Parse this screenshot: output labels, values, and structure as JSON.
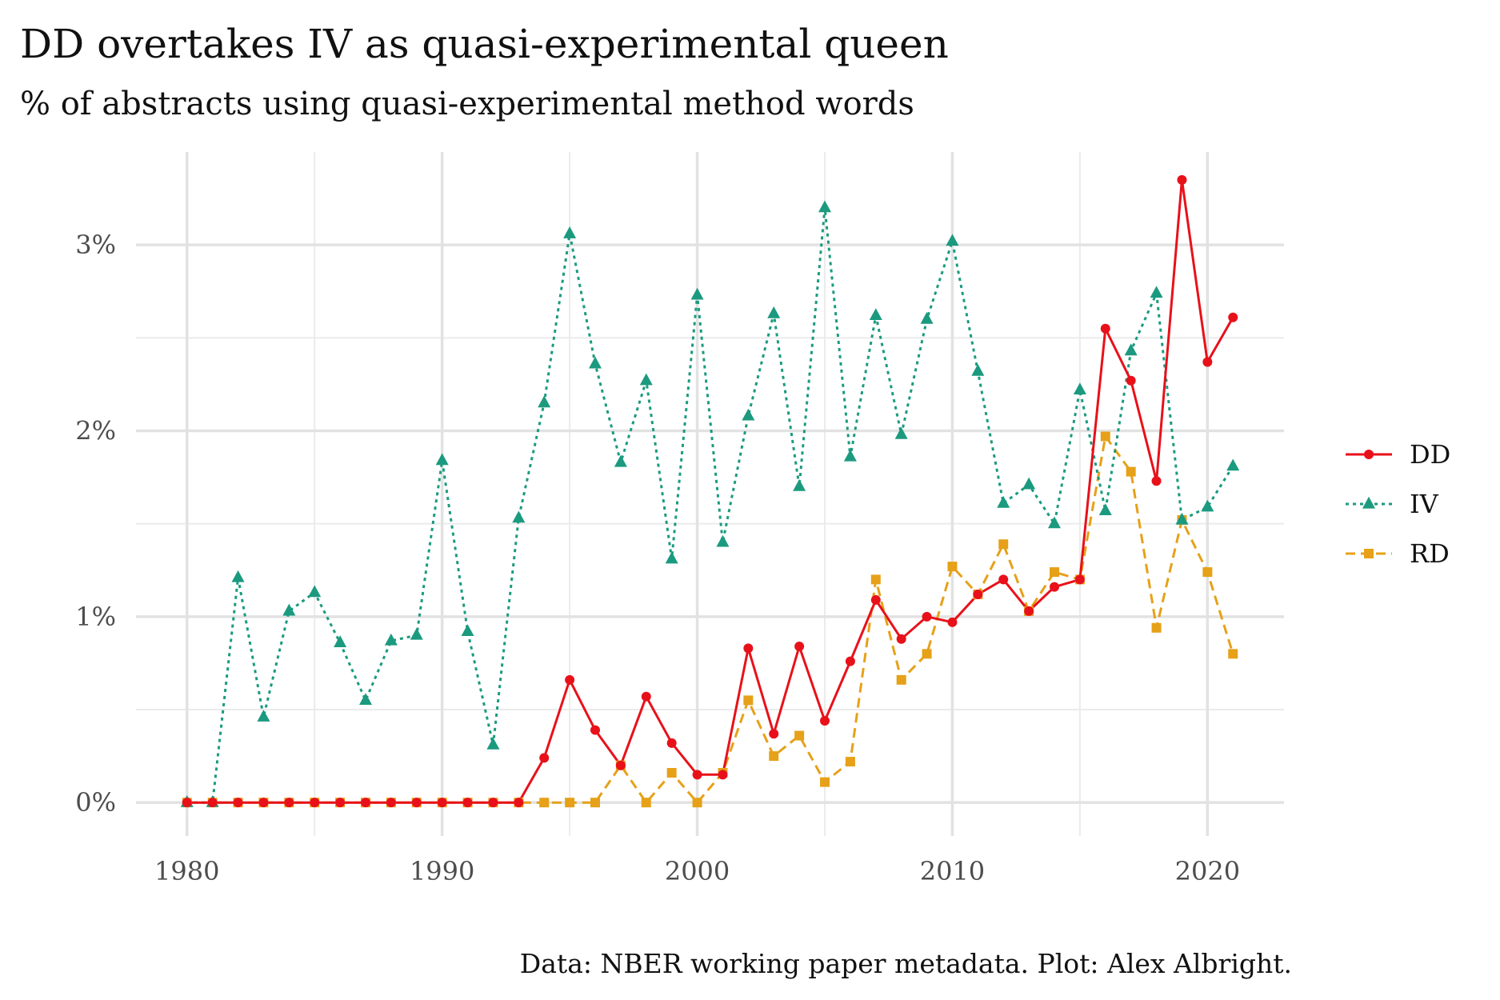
{
  "chart_data": {
    "type": "line",
    "title": "DD overtakes IV as quasi-experimental queen",
    "subtitle": "% of abstracts using quasi-experimental method words",
    "caption": "Data: NBER working paper metadata. Plot: Alex Albright.",
    "xlabel": "",
    "ylabel": "",
    "xlim": [
      1978,
      2023
    ],
    "ylim": [
      -0.18,
      3.5
    ],
    "x_ticks": [
      1980,
      1990,
      2000,
      2010,
      2020
    ],
    "x_tick_labels": [
      "1980",
      "1990",
      "2000",
      "2010",
      "2020"
    ],
    "y_ticks": [
      0,
      1,
      2,
      3
    ],
    "y_tick_labels": [
      "0%",
      "1%",
      "2%",
      "3%"
    ],
    "grid": true,
    "legend_position": "right",
    "x": [
      1980,
      1981,
      1982,
      1983,
      1984,
      1985,
      1986,
      1987,
      1988,
      1989,
      1990,
      1991,
      1992,
      1993,
      1994,
      1995,
      1996,
      1997,
      1998,
      1999,
      2000,
      2001,
      2002,
      2003,
      2004,
      2005,
      2006,
      2007,
      2008,
      2009,
      2010,
      2011,
      2012,
      2013,
      2014,
      2015,
      2016,
      2017,
      2018,
      2019,
      2020,
      2021
    ],
    "series": [
      {
        "name": "DD",
        "color": "#e8111a",
        "dash": "solid",
        "marker": "circle",
        "values": [
          0,
          0,
          0,
          0,
          0,
          0,
          0,
          0,
          0,
          0,
          0,
          0,
          0,
          0,
          0.24,
          0.66,
          0.39,
          0.2,
          0.57,
          0.32,
          0.15,
          0.15,
          0.83,
          0.37,
          0.84,
          0.44,
          0.76,
          1.09,
          0.88,
          1.0,
          0.97,
          1.12,
          1.2,
          1.03,
          1.16,
          1.2,
          2.55,
          2.27,
          1.73,
          3.35,
          2.37,
          2.61
        ]
      },
      {
        "name": "IV",
        "color": "#1b9a7f",
        "dash": "dotted",
        "marker": "triangle",
        "values": [
          0,
          0,
          1.21,
          0.46,
          1.03,
          1.13,
          0.86,
          0.55,
          0.87,
          0.9,
          1.84,
          0.92,
          0.31,
          1.53,
          2.15,
          3.06,
          2.36,
          1.83,
          2.27,
          1.31,
          2.73,
          1.4,
          2.08,
          2.63,
          1.7,
          3.2,
          1.86,
          2.62,
          1.98,
          2.6,
          3.02,
          2.32,
          1.61,
          1.71,
          1.5,
          2.22,
          1.57,
          2.43,
          2.74,
          1.52,
          1.59,
          1.81
        ]
      },
      {
        "name": "RD",
        "color": "#e6a118",
        "dash": "dashed",
        "marker": "square",
        "values": [
          0,
          0,
          0,
          0,
          0,
          0,
          0,
          0,
          0,
          0,
          0,
          0,
          0,
          0,
          0,
          0,
          0,
          0.2,
          0,
          0.16,
          0,
          0.16,
          0.55,
          0.25,
          0.36,
          0.11,
          0.22,
          1.2,
          0.66,
          0.8,
          1.27,
          1.12,
          1.39,
          1.03,
          1.24,
          1.2,
          1.97,
          1.78,
          0.94,
          1.52,
          1.24,
          0.8
        ]
      }
    ]
  }
}
